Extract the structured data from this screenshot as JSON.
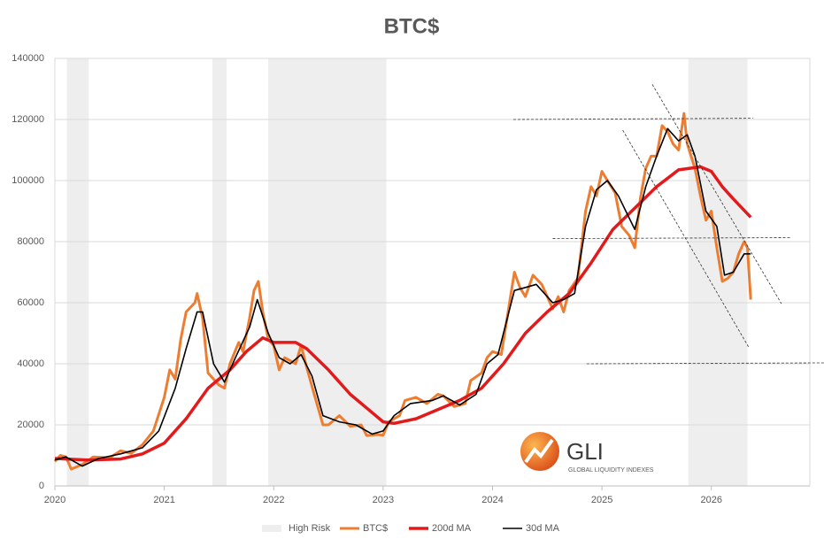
{
  "chart_data": {
    "type": "line",
    "title": "BTC$",
    "xlim": [
      2020,
      2026.9
    ],
    "xticks": [
      2020,
      2021,
      2022,
      2023,
      2024,
      2025,
      2026
    ],
    "ylim": [
      0,
      140000
    ],
    "yticks": [
      0,
      20000,
      40000,
      60000,
      80000,
      100000,
      120000,
      140000
    ],
    "grid": true,
    "legend": "bottom",
    "high_risk": {
      "name": "High Risk",
      "color": "#eeeeee",
      "periods": [
        [
          2020.11,
          2020.31
        ],
        [
          2021.44,
          2021.57
        ],
        [
          2021.95,
          2023.03
        ],
        [
          2025.79,
          2026.33
        ]
      ]
    },
    "series": [
      {
        "name": "BTC$",
        "color": "#ed7d31",
        "width": 3,
        "x": [
          2020.0,
          2020.05,
          2020.1,
          2020.15,
          2020.25,
          2020.35,
          2020.5,
          2020.6,
          2020.7,
          2020.8,
          2020.9,
          2021.0,
          2021.05,
          2021.1,
          2021.15,
          2021.2,
          2021.28,
          2021.3,
          2021.35,
          2021.4,
          2021.45,
          2021.5,
          2021.55,
          2021.6,
          2021.68,
          2021.72,
          2021.78,
          2021.82,
          2021.86,
          2021.9,
          2021.95,
          2022.0,
          2022.05,
          2022.1,
          2022.2,
          2022.25,
          2022.3,
          2022.37,
          2022.45,
          2022.5,
          2022.6,
          2022.7,
          2022.8,
          2022.85,
          2022.95,
          2023.0,
          2023.05,
          2023.15,
          2023.2,
          2023.3,
          2023.4,
          2023.5,
          2023.55,
          2023.65,
          2023.75,
          2023.8,
          2023.9,
          2023.95,
          2024.0,
          2024.08,
          2024.12,
          2024.2,
          2024.25,
          2024.3,
          2024.37,
          2024.45,
          2024.55,
          2024.6,
          2024.65,
          2024.7,
          2024.78,
          2024.85,
          2024.9,
          2024.95,
          2025.0,
          2025.05,
          2025.12,
          2025.18,
          2025.25,
          2025.3,
          2025.35,
          2025.4,
          2025.45,
          2025.5,
          2025.55,
          2025.6,
          2025.65,
          2025.7,
          2025.75,
          2025.78,
          2025.85,
          2025.9,
          2025.95,
          2026.0,
          2026.05,
          2026.1,
          2026.15,
          2026.2,
          2026.25,
          2026.3,
          2026.33,
          2026.36
        ],
        "values": [
          8000,
          10000,
          9500,
          5500,
          7000,
          9500,
          9200,
          11500,
          10700,
          13500,
          18000,
          29000,
          38000,
          35000,
          48000,
          57000,
          60000,
          63000,
          55000,
          37000,
          35000,
          33000,
          32000,
          40000,
          47000,
          44000,
          55000,
          64000,
          67000,
          57000,
          48000,
          46000,
          38000,
          42000,
          40000,
          46000,
          39000,
          30000,
          20000,
          20000,
          23000,
          19500,
          20000,
          16500,
          16800,
          16600,
          21000,
          23000,
          28000,
          29000,
          27000,
          30000,
          29500,
          26000,
          27000,
          34500,
          37000,
          42000,
          44000,
          43000,
          52000,
          70000,
          65000,
          62000,
          69000,
          66000,
          58000,
          62000,
          57000,
          64000,
          68000,
          90000,
          98000,
          95000,
          103000,
          100000,
          96000,
          85000,
          82000,
          78000,
          94000,
          104000,
          108000,
          108000,
          118000,
          116000,
          112000,
          110000,
          122000,
          112000,
          104000,
          95000,
          87000,
          90000,
          78000,
          67000,
          68000,
          70000,
          76000,
          80000,
          78000,
          61000
        ]
      },
      {
        "name": "200d MA",
        "color": "#e31a1c",
        "width": 3.5,
        "x": [
          2020.0,
          2020.3,
          2020.6,
          2020.8,
          2021.0,
          2021.2,
          2021.4,
          2021.6,
          2021.75,
          2021.9,
          2022.0,
          2022.2,
          2022.3,
          2022.5,
          2022.7,
          2022.9,
          2023.0,
          2023.1,
          2023.3,
          2023.5,
          2023.7,
          2023.9,
          2024.1,
          2024.3,
          2024.5,
          2024.7,
          2024.9,
          2025.1,
          2025.3,
          2025.5,
          2025.7,
          2025.9,
          2026.0,
          2026.1,
          2026.2,
          2026.36
        ],
        "values": [
          9000,
          8500,
          8800,
          10500,
          14000,
          22000,
          32000,
          38000,
          44000,
          48500,
          47000,
          47000,
          45000,
          38000,
          30000,
          24000,
          21000,
          20500,
          22000,
          25000,
          28000,
          32000,
          40000,
          50000,
          57000,
          63000,
          73000,
          84000,
          91000,
          98000,
          103500,
          104500,
          103000,
          98000,
          94000,
          88000
        ]
      },
      {
        "name": "30d MA",
        "color": "#000000",
        "width": 1.6,
        "x": [
          2020.0,
          2020.1,
          2020.25,
          2020.4,
          2020.6,
          2020.8,
          2020.95,
          2021.1,
          2021.2,
          2021.3,
          2021.35,
          2021.45,
          2021.55,
          2021.65,
          2021.78,
          2021.85,
          2021.95,
          2022.05,
          2022.15,
          2022.25,
          2022.35,
          2022.45,
          2022.6,
          2022.75,
          2022.9,
          2023.0,
          2023.1,
          2023.25,
          2023.45,
          2023.55,
          2023.7,
          2023.85,
          2023.95,
          2024.05,
          2024.2,
          2024.3,
          2024.4,
          2024.55,
          2024.65,
          2024.75,
          2024.85,
          2024.95,
          2025.05,
          2025.15,
          2025.3,
          2025.4,
          2025.5,
          2025.6,
          2025.7,
          2025.78,
          2025.85,
          2025.95,
          2026.05,
          2026.12,
          2026.2,
          2026.3,
          2026.36
        ],
        "values": [
          8500,
          9500,
          6500,
          9000,
          10500,
          12500,
          18000,
          32000,
          45000,
          57000,
          57000,
          40000,
          34000,
          42000,
          52000,
          61000,
          50000,
          42000,
          40000,
          43000,
          36000,
          23000,
          21000,
          20000,
          17000,
          18000,
          23000,
          27000,
          28000,
          29500,
          26500,
          30000,
          40000,
          43000,
          64000,
          65000,
          66000,
          60000,
          61000,
          63000,
          85000,
          97000,
          100000,
          95000,
          84000,
          98000,
          108000,
          117000,
          113000,
          115000,
          108000,
          90000,
          85000,
          69000,
          70000,
          76000,
          76000
        ]
      }
    ],
    "trendlines": [
      {
        "x": [
          2024.19,
          2026.38
        ],
        "y": [
          120000,
          120400
        ]
      },
      {
        "x": [
          2024.55,
          2026.72
        ],
        "y": [
          81000,
          81300
        ]
      },
      {
        "x": [
          2024.86,
          2027.03
        ],
        "y": [
          40000,
          40300
        ]
      },
      {
        "x": [
          2025.46,
          2026.64
        ],
        "y": [
          131500,
          59700
        ]
      },
      {
        "x": [
          2025.19,
          2026.34
        ],
        "y": [
          116500,
          45500
        ]
      }
    ],
    "watermark": {
      "title": "GLI",
      "subtitle": "GLOBAL LIQUIDITY INDEXES"
    }
  }
}
